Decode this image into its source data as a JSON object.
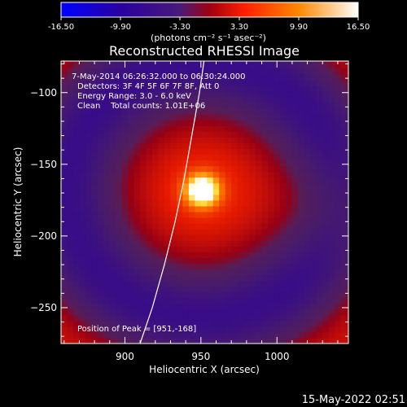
{
  "chart_data": {
    "type": "heatmap",
    "title": "Reconstructed RHESSI Image",
    "xlabel": "Heliocentric X (arcsec)",
    "ylabel": "Heliocentric Y (arcsec)",
    "xlim": [
      858,
      1047
    ],
    "ylim": [
      -275,
      -78
    ],
    "x_ticks": [
      900,
      950,
      1000
    ],
    "y_ticks": [
      -100,
      -150,
      -200,
      -250
    ],
    "colorbar": {
      "ticks": [
        "-16.50",
        "-9.90",
        "-3.30",
        "3.30",
        "9.90",
        "16.50"
      ],
      "min": -16.5,
      "max": 16.5,
      "unit_label": "(photons cm⁻² s⁻¹ asec⁻²)"
    },
    "annotations": [
      "7-May-2014 06:26:32.000 to 06:30:24.000",
      "Detectors: 3F 4F 5F 6F 7F 8F, Att 0",
      "Energy Range: 3.0 - 6.0 keV",
      "Clean    Total counts: 1.01E+06"
    ],
    "peak": {
      "label": "Position of Peak = [951,-168]",
      "x": 951,
      "y": -168,
      "value": 16.5
    },
    "limb_curve": [
      [
        910,
        -275
      ],
      [
        918,
        -250
      ],
      [
        926,
        -220
      ],
      [
        933,
        -190
      ],
      [
        939,
        -160
      ],
      [
        944,
        -130
      ],
      [
        949,
        -100
      ],
      [
        952,
        -78
      ]
    ],
    "grid": false
  },
  "footer": {
    "date": "15-May-2022 02:51"
  }
}
